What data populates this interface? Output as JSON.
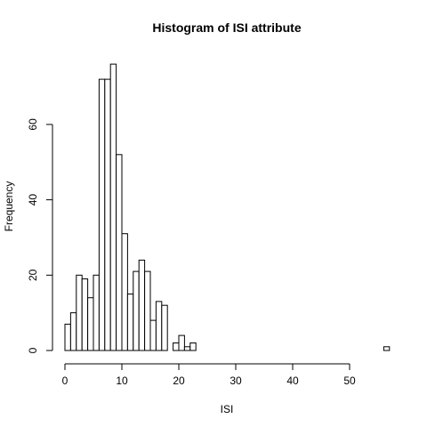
{
  "chart_data": {
    "type": "bar",
    "title": "Histogram of ISI attribute",
    "xlabel": "ISI",
    "ylabel": "Frequency",
    "x_ticks": [
      0,
      10,
      20,
      30,
      40,
      50
    ],
    "y_ticks": [
      0,
      20,
      40,
      60
    ],
    "xlim": [
      0,
      57
    ],
    "ylim": [
      0,
      76
    ],
    "bin_width": 1,
    "bin_starts": [
      0,
      1,
      2,
      3,
      4,
      5,
      6,
      7,
      8,
      9,
      10,
      11,
      12,
      13,
      14,
      15,
      16,
      17,
      18,
      19,
      20,
      21,
      22,
      23,
      24,
      25,
      26,
      27,
      28,
      29,
      30,
      31,
      32,
      33,
      34,
      35,
      36,
      37,
      38,
      39,
      40,
      41,
      42,
      43,
      44,
      45,
      46,
      47,
      48,
      49,
      50,
      51,
      52,
      53,
      54,
      55,
      56
    ],
    "values": [
      7,
      10,
      20,
      19,
      14,
      20,
      72,
      72,
      76,
      52,
      31,
      15,
      21,
      24,
      21,
      8,
      13,
      12,
      0,
      2,
      4,
      1,
      2,
      0,
      0,
      0,
      0,
      0,
      0,
      0,
      0,
      0,
      0,
      0,
      0,
      0,
      0,
      0,
      0,
      0,
      0,
      0,
      0,
      0,
      0,
      0,
      0,
      0,
      0,
      0,
      0,
      0,
      0,
      0,
      0,
      0,
      1
    ],
    "grid": false
  }
}
